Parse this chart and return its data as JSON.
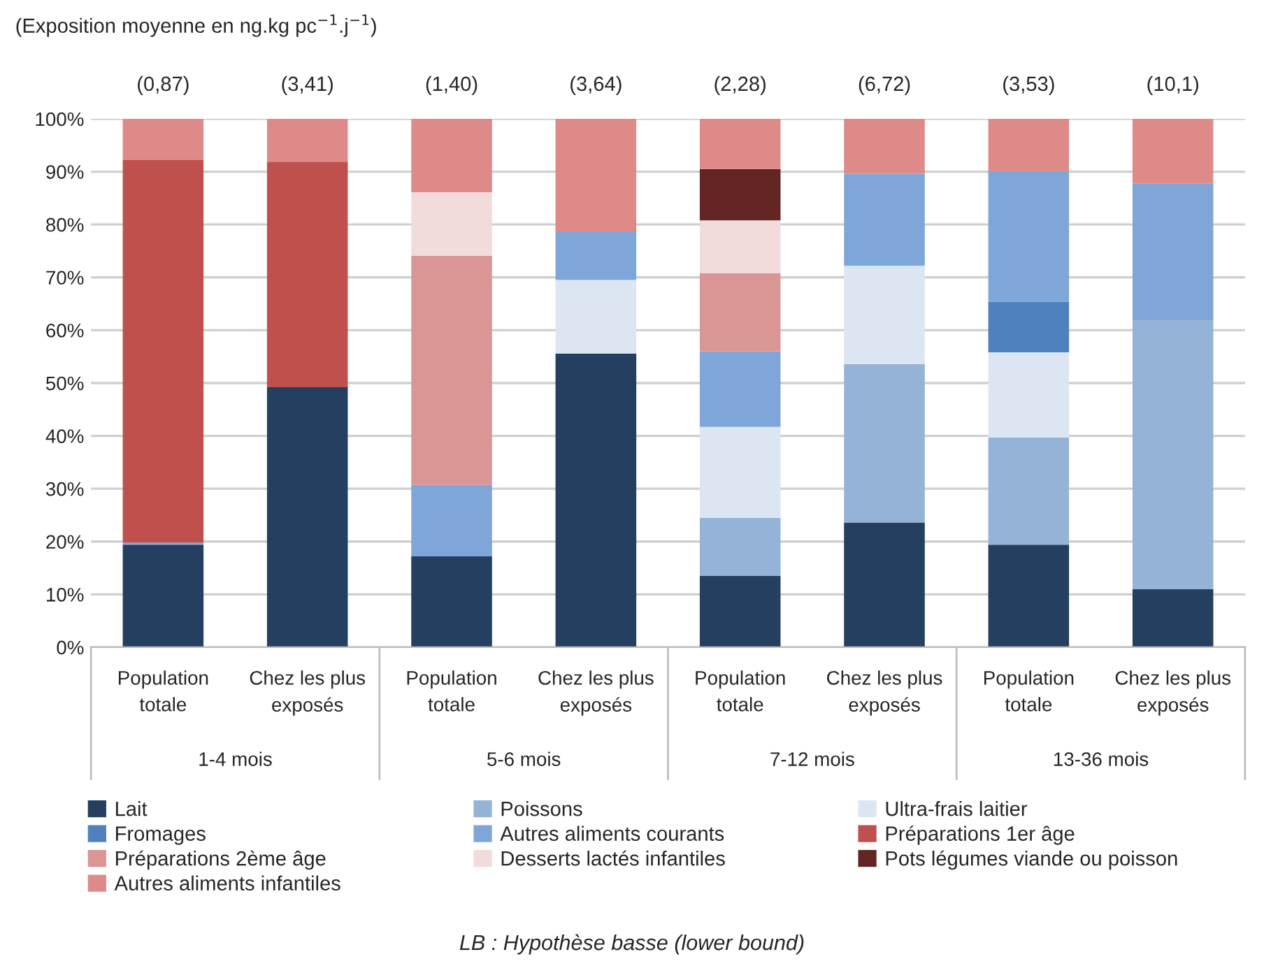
{
  "chart_data": {
    "type": "bar",
    "stacked": true,
    "title": "(Exposition moyenne en ng.kg pc$^{−1}$.j$^{−1}$)",
    "categories": [
      "Population\ntotale",
      "Chez les plus\nexposés",
      "Population\ntotale",
      "Chez les plus\nexposés",
      "Population\ntotale",
      "Chez les plus\nexposés",
      "Population\ntotale",
      "Chez les plus\nexposés"
    ],
    "series": [
      {
        "name": "Lait",
        "color": "#243f60",
        "values": [
          19.4,
          49.2,
          17.2,
          55.6,
          13.5,
          23.6,
          19.4,
          11.0
        ]
      },
      {
        "name": "Poissons",
        "color": "#95b3d7",
        "values": [
          null,
          null,
          null,
          null,
          11.0,
          30.0,
          20.3,
          50.8
        ]
      },
      {
        "name": "Ultra-frais laitier",
        "color": "#dce6f2",
        "values": [
          null,
          null,
          null,
          13.9,
          17.2,
          18.6,
          16.1,
          null
        ]
      },
      {
        "name": "Fromages",
        "color": "#4f81bd",
        "values": [
          null,
          null,
          null,
          null,
          null,
          null,
          9.6,
          null
        ]
      },
      {
        "name": "Autres aliments courants",
        "color": "#7ea6d8",
        "values": [
          0.4,
          null,
          13.5,
          9.2,
          14.3,
          17.4,
          24.7,
          26.0
        ]
      },
      {
        "name": "Préparations 1er âge",
        "color": "#c0504d",
        "values": [
          72.4,
          42.7,
          null,
          null,
          null,
          null,
          null,
          null
        ]
      },
      {
        "name": "Préparations 2ème âge",
        "color": "#d99694",
        "values": [
          null,
          null,
          43.4,
          null,
          14.8,
          null,
          null,
          null
        ]
      },
      {
        "name": "Desserts lactés infantiles",
        "color": "#f2dcdb",
        "values": [
          null,
          null,
          12.0,
          null,
          10.0,
          null,
          null,
          null
        ]
      },
      {
        "name": "Pots légumes viande ou poisson",
        "color": "#632523",
        "values": [
          null,
          null,
          null,
          null,
          9.7,
          null,
          null,
          null
        ]
      },
      {
        "name": "Autres aliments infantiles",
        "color": "#de8a88",
        "values": [
          7.8,
          8.1,
          13.9,
          21.3,
          9.5,
          10.4,
          9.9,
          12.2
        ]
      }
    ],
    "ylim": [
      0,
      100
    ],
    "yticks": [
      {
        "value": 0,
        "label": "0%"
      },
      {
        "value": 10,
        "label": "10%"
      },
      {
        "value": 20,
        "label": "20%"
      },
      {
        "value": 30,
        "label": "30%"
      },
      {
        "value": 40,
        "label": "40%"
      },
      {
        "value": 50,
        "label": "50%"
      },
      {
        "value": 60,
        "label": "60%"
      },
      {
        "value": 70,
        "label": "70%"
      },
      {
        "value": 80,
        "label": "80%"
      },
      {
        "value": 90,
        "label": "90%"
      },
      {
        "value": 100,
        "label": "100%"
      }
    ],
    "grid": "y",
    "legend": "bottom",
    "annotations": [
      "(0,87)",
      "(3,41)",
      "(1,40)",
      "(3,64)",
      "(2,28)",
      "(6,72)",
      "(3,53)",
      "(10,1)",
      "1-4 mois",
      "5-6 mois",
      "7-12 mois",
      "13-36 mois",
      "LB : Hypothèse basse (lower bound)"
    ]
  }
}
